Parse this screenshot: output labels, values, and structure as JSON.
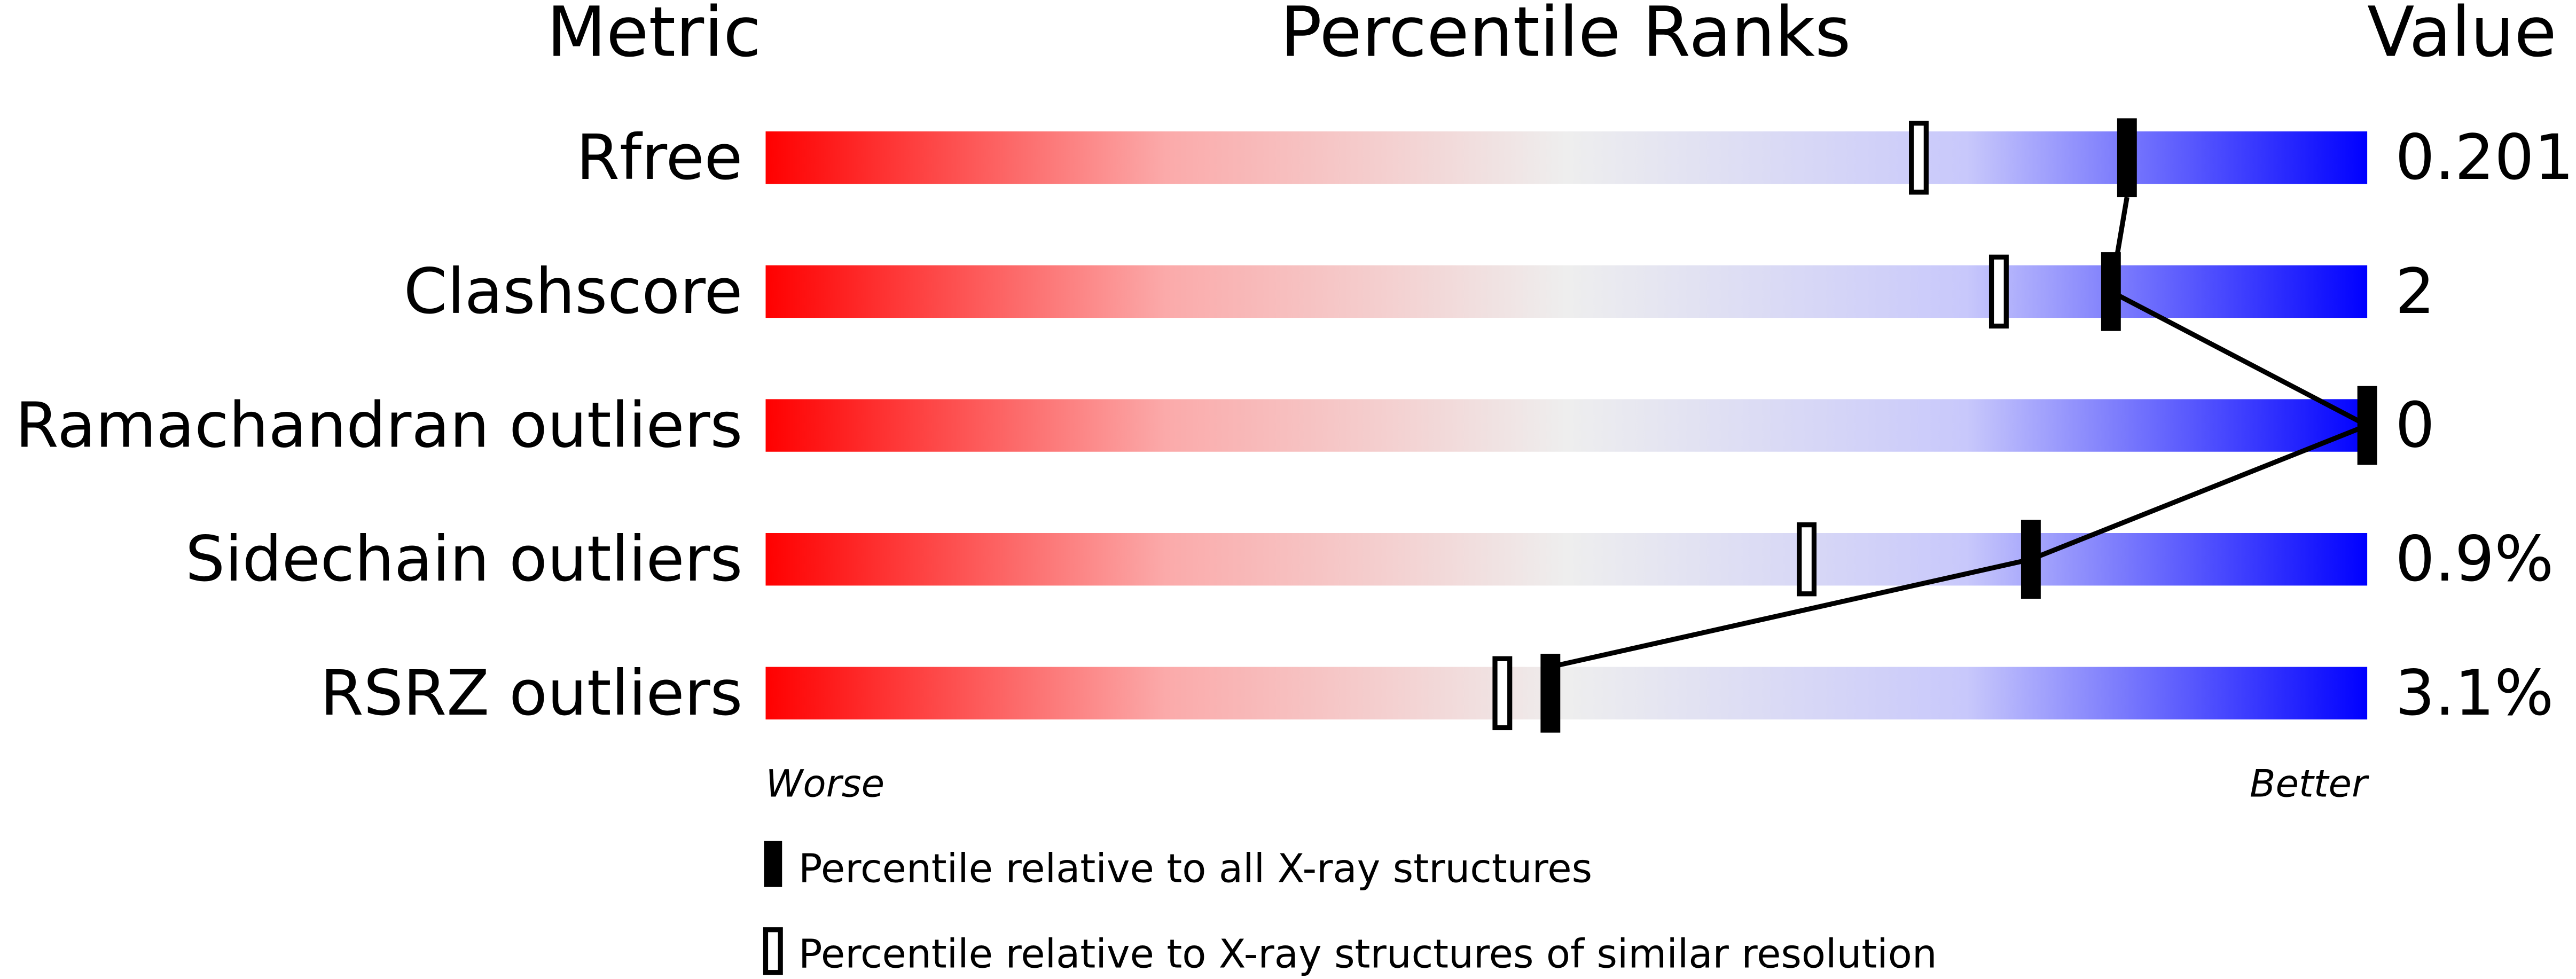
{
  "chart_data": {
    "type": "percentile-slider",
    "headers": {
      "metric": "Metric",
      "percentile": "Percentile Ranks",
      "value": "Value"
    },
    "xlim": [
      0,
      100
    ],
    "axis_labels": {
      "left": "Worse",
      "right": "Better"
    },
    "colors": {
      "worse": "#ff0000",
      "middle": "#eeeeee",
      "better": "#0000ff"
    },
    "rows": [
      {
        "metric": "Rfree",
        "value": "0.201",
        "percentile_all": 85,
        "percentile_similar": 72
      },
      {
        "metric": "Clashscore",
        "value": "2",
        "percentile_all": 84,
        "percentile_similar": 77
      },
      {
        "metric": "Ramachandran outliers",
        "value": "0",
        "percentile_all": 100,
        "percentile_similar": 100
      },
      {
        "metric": "Sidechain outliers",
        "value": "0.9%",
        "percentile_all": 79,
        "percentile_similar": 65
      },
      {
        "metric": "RSRZ outliers",
        "value": "3.1%",
        "percentile_all": 49,
        "percentile_similar": 46
      }
    ],
    "legend": [
      {
        "marker": "filled",
        "label": "Percentile relative to all X-ray structures"
      },
      {
        "marker": "open",
        "label": "Percentile relative to X-ray structures of similar resolution"
      }
    ]
  }
}
